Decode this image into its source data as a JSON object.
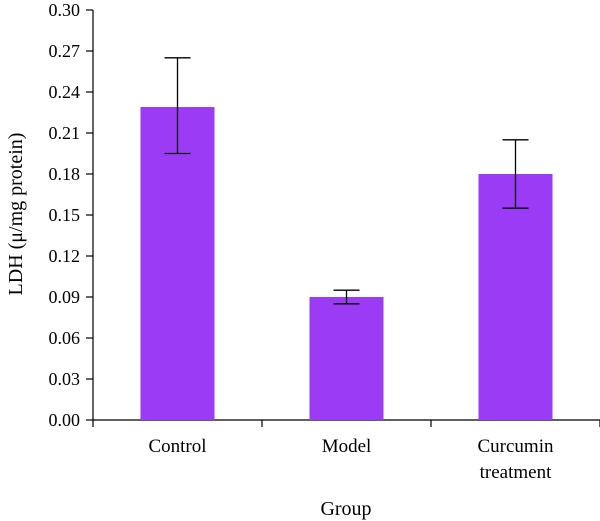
{
  "chart_data": {
    "type": "bar",
    "title": "",
    "xlabel": "Group",
    "ylabel": "LDH (μ/mg protein)",
    "categories": [
      [
        "Control"
      ],
      [
        "Model"
      ],
      [
        "Curcumin",
        "treatment"
      ]
    ],
    "values": [
      0.229,
      0.09,
      0.18
    ],
    "error_upper": [
      0.265,
      0.095,
      0.205
    ],
    "error_lower": [
      0.195,
      0.085,
      0.155
    ],
    "ylim": [
      0,
      0.3
    ],
    "yticks": [
      "0.00",
      "0.03",
      "0.06",
      "0.09",
      "0.12",
      "0.15",
      "0.18",
      "0.21",
      "0.24",
      "0.27",
      "0.30"
    ],
    "bar_color": "#9b3bf5",
    "grid": false,
    "legend": "none"
  }
}
